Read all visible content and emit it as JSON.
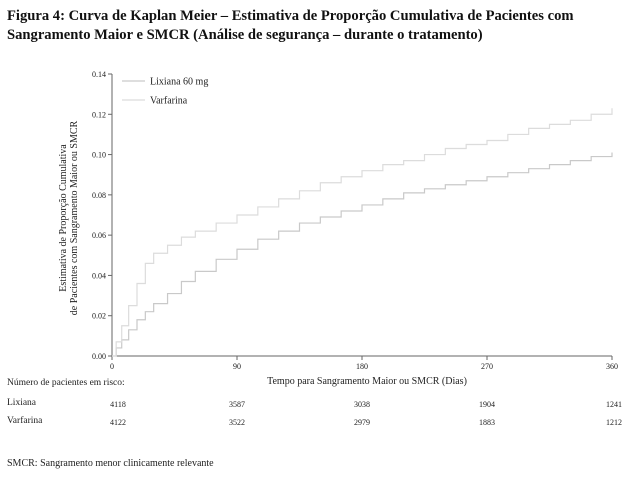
{
  "figure": {
    "title": "Figura 4: Curva de Kaplan Meier – Estimativa de Proporção Cumulativa de Pacientes com Sangramento Maior e SMCR (Análise de segurança – durante o tratamento)",
    "footnote": "SMCR: Sangramento menor clinicamente relevante"
  },
  "chart_data": {
    "type": "line",
    "title": "",
    "xlabel": "Tempo para Sangramento Maior ou SMCR (Dias)",
    "ylabel": "Estimativa de Proporção Cumulativa de Pacientes com Sangramento Maior ou SMCR",
    "ylabel_lines": [
      "Estimativa de Proporção Cumulativa",
      "de Pacientes com Sangramento Maior ou SMCR"
    ],
    "xlim": [
      0,
      360
    ],
    "ylim": [
      0,
      0.14
    ],
    "xticks": [
      "0",
      "90",
      "180",
      "270",
      "360"
    ],
    "xtick_values": [
      0,
      90,
      180,
      270,
      360
    ],
    "yticks": [
      "0.00",
      "0.02",
      "0.04",
      "0.06",
      "0.08",
      "0.10",
      "0.12",
      "0.14"
    ],
    "ytick_values": [
      0,
      0.02,
      0.04,
      0.06,
      0.08,
      0.1,
      0.12,
      0.14
    ],
    "legend_position": "top-left",
    "series": [
      {
        "name": "Lixiana 60 mg",
        "color": "#c9c9c9",
        "x": [
          0,
          3,
          7,
          12,
          18,
          24,
          30,
          40,
          50,
          60,
          75,
          90,
          105,
          120,
          135,
          150,
          165,
          180,
          195,
          210,
          225,
          240,
          255,
          270,
          285,
          300,
          315,
          330,
          345,
          360
        ],
        "y": [
          0,
          0.004,
          0.008,
          0.013,
          0.018,
          0.022,
          0.026,
          0.031,
          0.037,
          0.042,
          0.048,
          0.053,
          0.058,
          0.062,
          0.066,
          0.069,
          0.072,
          0.075,
          0.078,
          0.081,
          0.083,
          0.085,
          0.087,
          0.089,
          0.091,
          0.093,
          0.095,
          0.097,
          0.099,
          0.101
        ]
      },
      {
        "name": "Varfarina",
        "color": "#dcdcdc",
        "x": [
          0,
          3,
          7,
          12,
          18,
          24,
          30,
          40,
          50,
          60,
          75,
          90,
          105,
          120,
          135,
          150,
          165,
          180,
          195,
          210,
          225,
          240,
          255,
          270,
          285,
          300,
          315,
          330,
          345,
          360
        ],
        "y": [
          0,
          0.007,
          0.015,
          0.025,
          0.036,
          0.046,
          0.051,
          0.055,
          0.059,
          0.062,
          0.066,
          0.07,
          0.074,
          0.078,
          0.082,
          0.086,
          0.089,
          0.092,
          0.095,
          0.097,
          0.1,
          0.103,
          0.105,
          0.107,
          0.11,
          0.113,
          0.115,
          0.117,
          0.12,
          0.123
        ]
      }
    ],
    "risk_table": {
      "header": "Número de pacientes em risco:",
      "rows": [
        {
          "name": "Lixiana",
          "values": [
            "4118",
            "3587",
            "3038",
            "1904",
            "1241"
          ]
        },
        {
          "name": "Varfarina",
          "values": [
            "4122",
            "3522",
            "2979",
            "1883",
            "1212"
          ]
        }
      ]
    }
  }
}
